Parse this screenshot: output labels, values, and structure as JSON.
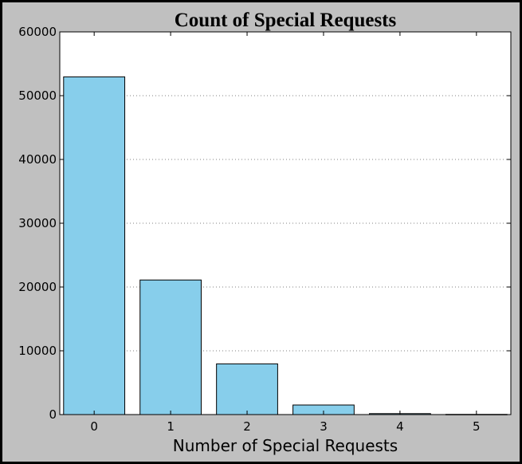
{
  "chart_data": {
    "type": "bar",
    "title": "Count of Special Requests",
    "xlabel": "Number of Special Requests",
    "ylabel": "",
    "categories": [
      "0",
      "1",
      "2",
      "3",
      "4",
      "5"
    ],
    "values": [
      52950,
      21100,
      7950,
      1500,
      150,
      30
    ],
    "ylim": [
      0,
      60000
    ],
    "yticks": [
      "0",
      "10000",
      "20000",
      "30000",
      "40000",
      "50000",
      "60000"
    ],
    "grid": "horizontal-dotted",
    "colors": {
      "bar_fill": "#87ceeb",
      "bar_edge": "#000000",
      "plot_background": "#ffffff",
      "figure_background": "#c0c0c0",
      "grid": "#808080"
    }
  }
}
